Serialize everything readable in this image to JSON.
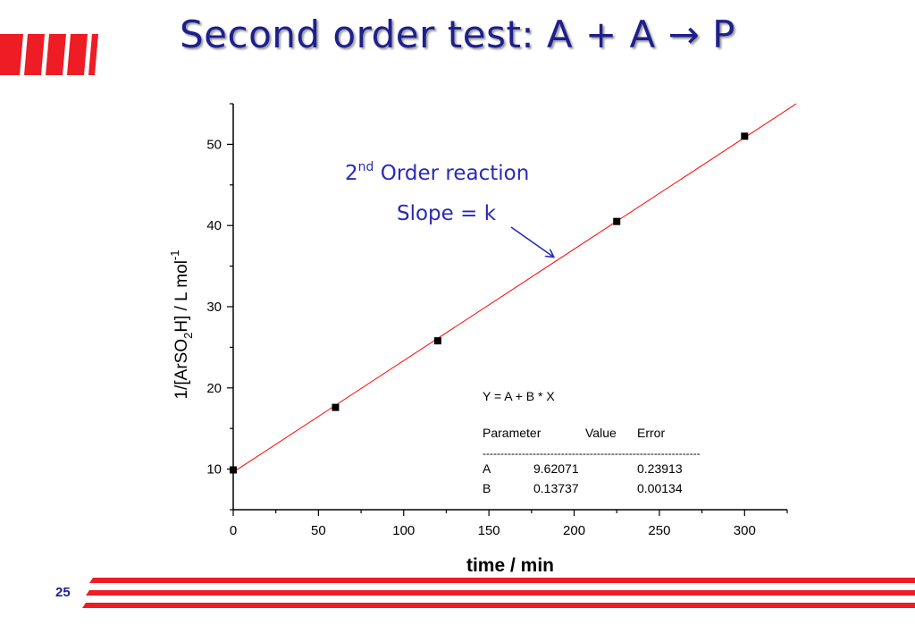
{
  "slide": {
    "title": "Second order test:  A + A  → P",
    "page_number": "25"
  },
  "annotation": {
    "line1_main": "2",
    "line1_sup": "nd",
    "line1_rest": " Order reaction",
    "line2": "Slope = k"
  },
  "fit_table": {
    "equation": "Y = A + B * X",
    "headers": [
      "Parameter",
      "Value",
      "Error"
    ],
    "rule": "-------------------------------------------------------------",
    "rows": [
      [
        "A",
        "9.62071",
        "0.23913"
      ],
      [
        "B",
        "0.13737",
        "0.00134"
      ]
    ]
  },
  "colors": {
    "title": "#1f1f8c",
    "annotation": "#2a2ab8",
    "fit_line": "#ff0000",
    "brand_red": "#ee1c24"
  },
  "chart_data": {
    "type": "scatter",
    "xlabel": "time / min",
    "ylabel_parts": [
      "1/[ArSO",
      "2",
      "H] / L mol",
      "-1"
    ],
    "xlim": [
      0,
      325
    ],
    "ylim": [
      5,
      55
    ],
    "xticks": [
      0,
      50,
      100,
      150,
      200,
      250,
      300
    ],
    "yticks": [
      10,
      20,
      30,
      40,
      50
    ],
    "grid": false,
    "series": [
      {
        "x": [
          0,
          60,
          120,
          225,
          300
        ],
        "y": [
          9.9,
          17.6,
          25.8,
          40.5,
          51.0
        ]
      }
    ],
    "fit": {
      "intercept": 9.62071,
      "slope": 0.13737
    }
  }
}
